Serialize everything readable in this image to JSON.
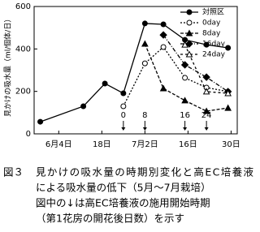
{
  "chart_data": {
    "type": "line",
    "y_label": "見かけの吸水量（ml/個体/日）",
    "x": [
      -2,
      12,
      19,
      25,
      32,
      38,
      45,
      52,
      59
    ],
    "xlim": [
      -4,
      62
    ],
    "xticks": [
      {
        "value": 4,
        "label": "6月4日"
      },
      {
        "value": 18,
        "label": "18日"
      },
      {
        "value": 32,
        "label": "7月2日"
      },
      {
        "value": 46,
        "label": "16日"
      },
      {
        "value": 60,
        "label": "30日"
      }
    ],
    "ylim": [
      0,
      600
    ],
    "yticks": [
      0,
      200,
      400,
      600
    ],
    "legend": "upper right",
    "series": [
      {
        "name": "対照区",
        "color": "#000000",
        "marker": "circle-filled",
        "dash": "none",
        "values": [
          57,
          130,
          237,
          191,
          520,
          516,
          443,
          420,
          405
        ]
      },
      {
        "name": "0day",
        "color": "#000000",
        "marker": "circle-open",
        "dash": "2,2",
        "values": [
          null,
          null,
          null,
          130,
          332,
          409,
          264,
          218,
          199
        ]
      },
      {
        "name": "8day",
        "color": "#000000",
        "marker": "triangle-filled",
        "dash": "4,2",
        "values": [
          null,
          null,
          null,
          null,
          424,
          214,
          157,
          107,
          122
        ]
      },
      {
        "name": "16day",
        "color": "#000000",
        "marker": "diamond-filled",
        "dash": "5,2,1,2",
        "values": [
          null,
          null,
          null,
          null,
          null,
          466,
          325,
          267,
          199
        ]
      },
      {
        "name": "24day",
        "color": "#000000",
        "marker": "triangle-open",
        "dash": "3,3",
        "values": [
          null,
          null,
          null,
          null,
          null,
          null,
          420,
          199,
          191
        ]
      }
    ],
    "annotations": [
      {
        "text": "0",
        "x": 25
      },
      {
        "text": "8",
        "x": 32
      },
      {
        "text": "16",
        "x": 45
      },
      {
        "text": "24",
        "x": 52
      }
    ]
  },
  "caption": {
    "label": "図３",
    "lines": [
      "見かけの吸水量の時期別変化と高EC培養液",
      "による吸水量の低下（5月～7月栽培）",
      "図中の↓は高EC培養液の施用開始時期",
      "（第1花房の開花後日数）を示す"
    ]
  }
}
